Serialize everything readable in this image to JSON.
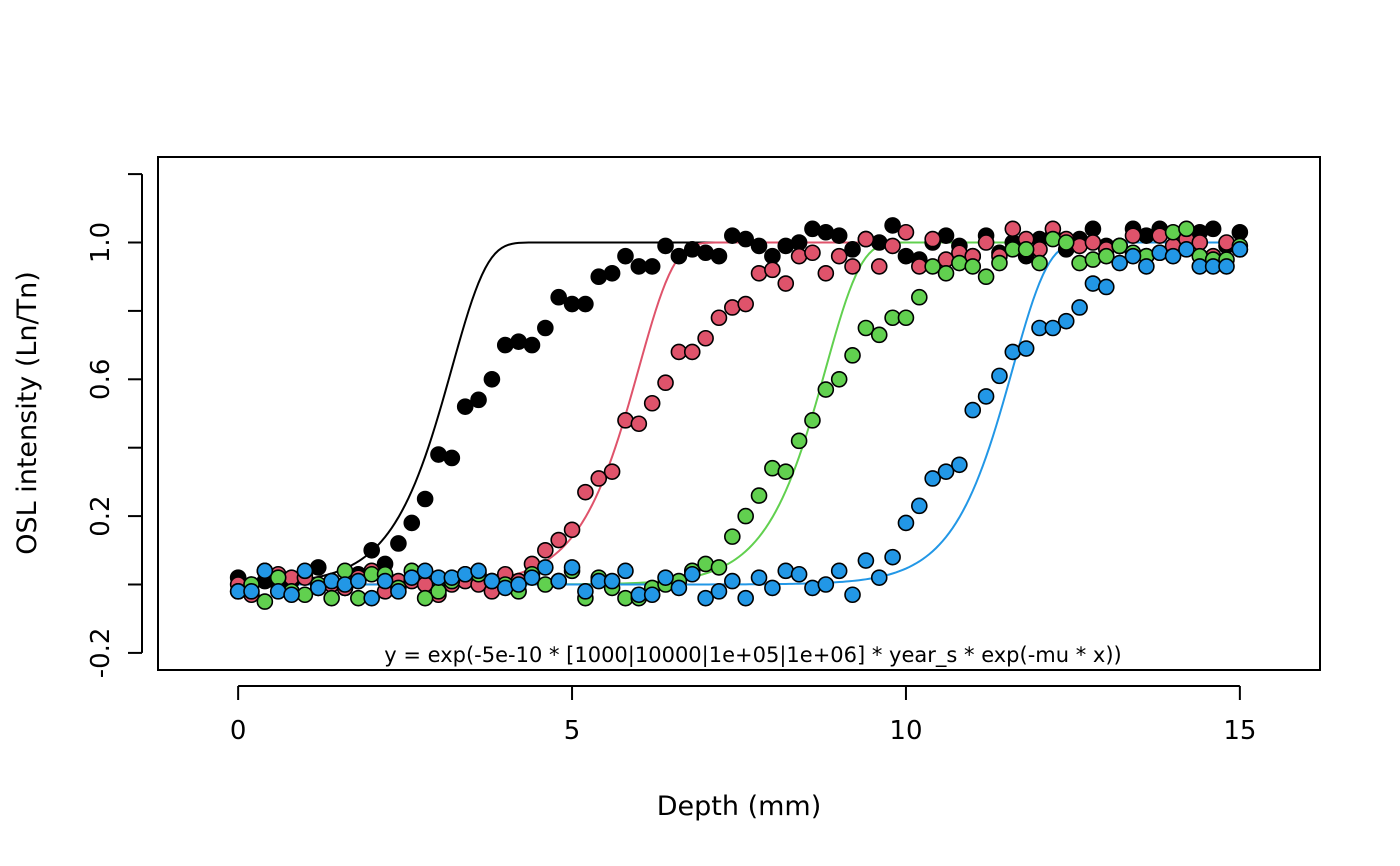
{
  "chart_data": {
    "type": "scatter",
    "title": "",
    "xlabel": "Depth (mm)",
    "ylabel": "OSL intensity (Ln/Tn)",
    "xlim": [
      -1.2,
      16.2
    ],
    "ylim": [
      -0.25,
      1.25
    ],
    "x_ticks": [
      0,
      5,
      10,
      15
    ],
    "y_ticks": [
      -0.2,
      0,
      0.2,
      0.4,
      0.6,
      0.8,
      1.0,
      1.2
    ],
    "y_tick_labels": [
      "-0.2",
      "0.2",
      "0.6",
      "1.0"
    ],
    "y_tick_label_values": [
      -0.2,
      0.2,
      0.6,
      1.0
    ],
    "grid": false,
    "annotation": "y = exp(-5e-10 * [1000|10000|1e+05|1e+06] * year_s * exp(-mu * x))",
    "series": [
      {
        "color": "#000000",
        "x": [
          0,
          0.2,
          0.4,
          0.6,
          0.8,
          1.0,
          1.2,
          1.4,
          1.6,
          1.8,
          2.0,
          2.2,
          2.4,
          2.6,
          2.8,
          3.0,
          3.2,
          3.4,
          3.6,
          3.8,
          4.0,
          4.2,
          4.4,
          4.6,
          4.8,
          5.0,
          5.2,
          5.4,
          5.6,
          5.8,
          6.0,
          6.2,
          6.4,
          6.6,
          6.8,
          7.0,
          7.2,
          7.4,
          7.6,
          7.8,
          8.0,
          8.2,
          8.4,
          8.6,
          8.8,
          9.0,
          9.2,
          9.4,
          9.6,
          9.8,
          10.0,
          10.2,
          10.4,
          10.6,
          10.8,
          11.0,
          11.2,
          11.4,
          11.6,
          11.8,
          12.0,
          12.2,
          12.4,
          12.6,
          12.8,
          13.0,
          13.2,
          13.4,
          13.6,
          13.8,
          14.0,
          14.2,
          14.4,
          14.6,
          14.8,
          15.0
        ],
        "y": [
          0.02,
          0.0,
          0.01,
          0.0,
          0.01,
          0.03,
          0.05,
          0.01,
          -0.01,
          0.03,
          0.1,
          0.06,
          0.12,
          0.18,
          0.25,
          0.38,
          0.37,
          0.52,
          0.54,
          0.6,
          0.7,
          0.71,
          0.7,
          0.75,
          0.84,
          0.82,
          0.82,
          0.9,
          0.91,
          0.96,
          0.93,
          0.93,
          0.99,
          0.96,
          0.98,
          0.97,
          0.96,
          1.02,
          1.01,
          0.99,
          0.96,
          0.99,
          1.0,
          1.04,
          1.03,
          1.02,
          0.98,
          1.01,
          1.0,
          1.05,
          0.96,
          0.95,
          1.0,
          1.02,
          0.99,
          0.96,
          1.02,
          0.97,
          1.0,
          0.96,
          1.01,
          1.02,
          0.98,
          1.01,
          1.04,
          0.99,
          0.99,
          1.04,
          1.02,
          1.04,
          0.98,
          1.02,
          1.03,
          1.04,
          0.99,
          1.03
        ],
        "fit_k": 1.9,
        "fit_c": 3.2
      },
      {
        "color": "#df536b",
        "x": [
          0,
          0.2,
          0.4,
          0.6,
          0.8,
          1.0,
          1.2,
          1.4,
          1.6,
          1.8,
          2.0,
          2.2,
          2.4,
          2.6,
          2.8,
          3.0,
          3.2,
          3.4,
          3.6,
          3.8,
          4.0,
          4.2,
          4.4,
          4.6,
          4.8,
          5.0,
          5.2,
          5.4,
          5.6,
          5.8,
          6.0,
          6.2,
          6.4,
          6.6,
          6.8,
          7.0,
          7.2,
          7.4,
          7.6,
          7.8,
          8.0,
          8.2,
          8.4,
          8.6,
          8.8,
          9.0,
          9.2,
          9.4,
          9.6,
          9.8,
          10.0,
          10.2,
          10.4,
          10.6,
          10.8,
          11.0,
          11.2,
          11.4,
          11.6,
          11.8,
          12.0,
          12.2,
          12.4,
          12.6,
          12.8,
          13.0,
          13.2,
          13.4,
          13.6,
          13.8,
          14.0,
          14.2,
          14.4,
          14.6,
          14.8,
          15.0
        ],
        "y": [
          0.0,
          -0.03,
          0.04,
          0.03,
          0.02,
          0.02,
          -0.01,
          0.0,
          -0.01,
          0.02,
          0.04,
          -0.02,
          0.01,
          0.01,
          0.0,
          -0.03,
          0.0,
          0.01,
          0.0,
          -0.02,
          0.03,
          0.01,
          0.06,
          0.1,
          0.13,
          0.16,
          0.27,
          0.31,
          0.33,
          0.48,
          0.47,
          0.53,
          0.59,
          0.68,
          0.68,
          0.72,
          0.78,
          0.81,
          0.82,
          0.91,
          0.92,
          0.88,
          0.96,
          0.97,
          0.91,
          0.96,
          0.93,
          1.01,
          0.93,
          0.99,
          1.03,
          0.93,
          1.01,
          0.95,
          0.97,
          0.96,
          1.0,
          0.96,
          1.04,
          1.01,
          0.98,
          1.04,
          1.01,
          0.99,
          1.0,
          0.98,
          0.99,
          1.02,
          0.96,
          1.02,
          0.99,
          1.01,
          1.0,
          0.96,
          1.0,
          0.98
        ],
        "fit_k": 1.9,
        "fit_c": 6.0
      },
      {
        "color": "#61d04f",
        "x": [
          0,
          0.2,
          0.4,
          0.6,
          0.8,
          1.0,
          1.2,
          1.4,
          1.6,
          1.8,
          2.0,
          2.2,
          2.4,
          2.6,
          2.8,
          3.0,
          3.2,
          3.4,
          3.6,
          3.8,
          4.0,
          4.2,
          4.4,
          4.6,
          4.8,
          5.0,
          5.2,
          5.4,
          5.6,
          5.8,
          6.0,
          6.2,
          6.4,
          6.6,
          6.8,
          7.0,
          7.2,
          7.4,
          7.6,
          7.8,
          8.0,
          8.2,
          8.4,
          8.6,
          8.8,
          9.0,
          9.2,
          9.4,
          9.6,
          9.8,
          10.0,
          10.2,
          10.4,
          10.6,
          10.8,
          11.0,
          11.2,
          11.4,
          11.6,
          11.8,
          12.0,
          12.2,
          12.4,
          12.6,
          12.8,
          13.0,
          13.2,
          13.4,
          13.6,
          13.8,
          14.0,
          14.2,
          14.4,
          14.6,
          14.8,
          15.0
        ],
        "y": [
          -0.02,
          0.0,
          -0.05,
          0.02,
          -0.02,
          -0.03,
          0.0,
          -0.04,
          0.04,
          -0.04,
          0.03,
          0.03,
          -0.01,
          0.04,
          -0.04,
          -0.02,
          0.01,
          0.03,
          0.03,
          0.01,
          0.0,
          -0.02,
          0.03,
          0.0,
          0.01,
          0.04,
          -0.04,
          0.02,
          -0.01,
          -0.04,
          -0.04,
          -0.01,
          0.0,
          0.01,
          0.04,
          0.06,
          0.05,
          0.14,
          0.2,
          0.26,
          0.34,
          0.33,
          0.42,
          0.48,
          0.57,
          0.6,
          0.67,
          0.75,
          0.73,
          0.78,
          0.78,
          0.84,
          0.93,
          0.91,
          0.94,
          0.93,
          0.9,
          0.94,
          0.98,
          0.98,
          0.94,
          1.01,
          1.0,
          0.94,
          0.95,
          0.96,
          0.99,
          0.97,
          0.96,
          0.97,
          1.03,
          1.04,
          0.96,
          0.95,
          0.95,
          0.99
        ],
        "fit_k": 1.9,
        "fit_c": 8.8
      },
      {
        "color": "#2297e6",
        "x": [
          0,
          0.2,
          0.4,
          0.6,
          0.8,
          1.0,
          1.2,
          1.4,
          1.6,
          1.8,
          2.0,
          2.2,
          2.4,
          2.6,
          2.8,
          3.0,
          3.2,
          3.4,
          3.6,
          3.8,
          4.0,
          4.2,
          4.4,
          4.6,
          4.8,
          5.0,
          5.2,
          5.4,
          5.6,
          5.8,
          6.0,
          6.2,
          6.4,
          6.6,
          6.8,
          7.0,
          7.2,
          7.4,
          7.6,
          7.8,
          8.0,
          8.2,
          8.4,
          8.6,
          8.8,
          9.0,
          9.2,
          9.4,
          9.6,
          9.8,
          10.0,
          10.2,
          10.4,
          10.6,
          10.8,
          11.0,
          11.2,
          11.4,
          11.6,
          11.8,
          12.0,
          12.2,
          12.4,
          12.6,
          12.8,
          13.0,
          13.2,
          13.4,
          13.6,
          13.8,
          14.0,
          14.2,
          14.4,
          14.6,
          14.8,
          15.0
        ],
        "y": [
          -0.02,
          -0.02,
          0.04,
          -0.02,
          -0.03,
          0.04,
          -0.01,
          0.01,
          0.0,
          0.01,
          -0.04,
          0.01,
          -0.02,
          0.02,
          0.04,
          0.02,
          0.02,
          0.03,
          0.04,
          0.01,
          -0.01,
          0.0,
          0.02,
          0.05,
          0.01,
          0.05,
          -0.02,
          0.01,
          0.01,
          0.04,
          -0.03,
          -0.03,
          0.02,
          -0.01,
          0.03,
          -0.04,
          -0.02,
          0.01,
          -0.04,
          0.02,
          -0.01,
          0.04,
          0.03,
          -0.01,
          0.0,
          0.04,
          -0.03,
          0.07,
          0.02,
          0.08,
          0.18,
          0.23,
          0.31,
          0.33,
          0.35,
          0.51,
          0.55,
          0.61,
          0.68,
          0.69,
          0.75,
          0.75,
          0.77,
          0.81,
          0.88,
          0.87,
          0.94,
          0.96,
          0.93,
          0.97,
          0.96,
          0.98,
          0.93,
          0.93,
          0.93,
          0.98
        ],
        "fit_k": 1.9,
        "fit_c": 11.6
      }
    ]
  }
}
